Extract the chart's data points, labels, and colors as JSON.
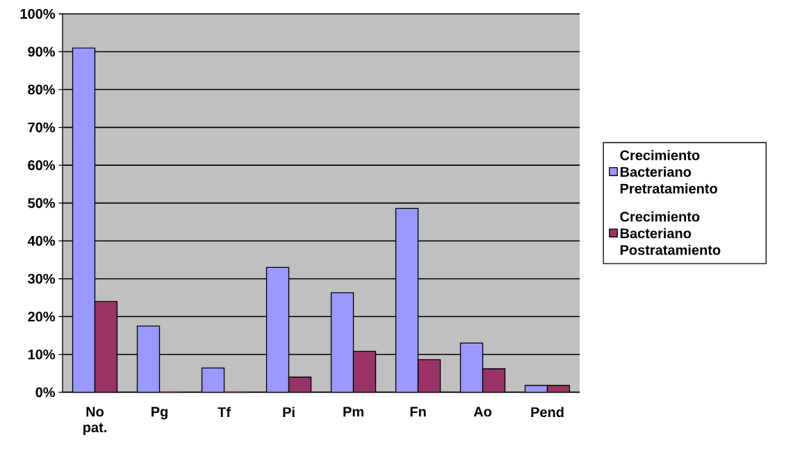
{
  "chart_data": {
    "type": "bar",
    "categories": [
      "No pat.",
      "Pg",
      "Tf",
      "Pi",
      "Pm",
      "Fn",
      "Ao",
      "Pend"
    ],
    "series": [
      {
        "name": "Crecimiento Bacteriano Pretratamiento",
        "color": "#9999ff",
        "values": [
          91,
          17.5,
          6.4,
          33,
          26.3,
          48.6,
          13,
          1.8
        ]
      },
      {
        "name": "Crecimiento Bacteriano Postratamiento",
        "color": "#993366",
        "values": [
          24,
          0,
          0,
          4,
          10.8,
          8.6,
          6.2,
          1.8
        ]
      }
    ],
    "ylim": [
      0,
      100
    ],
    "yticks": [
      {
        "value": 0,
        "label": "0%"
      },
      {
        "value": 10,
        "label": "10%"
      },
      {
        "value": 20,
        "label": "20%"
      },
      {
        "value": 30,
        "label": "30%"
      },
      {
        "value": 40,
        "label": "40%"
      },
      {
        "value": 50,
        "label": "50%"
      },
      {
        "value": 60,
        "label": "60%"
      },
      {
        "value": 70,
        "label": "70%"
      },
      {
        "value": 80,
        "label": "80%"
      },
      {
        "value": 90,
        "label": "90%"
      },
      {
        "value": 100,
        "label": "100%"
      }
    ],
    "grid": "y",
    "legend": "right"
  }
}
